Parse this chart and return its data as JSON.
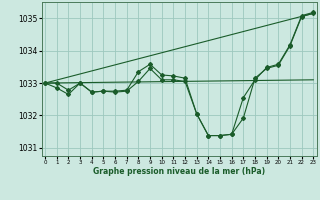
{
  "xlabel": "Graphe pression niveau de la mer (hPa)",
  "background_color": "#cce8e0",
  "grid_color": "#9dc8be",
  "line_color": "#1a5c2a",
  "hours": [
    0,
    1,
    2,
    3,
    4,
    5,
    6,
    7,
    8,
    9,
    10,
    11,
    12,
    13,
    14,
    15,
    16,
    17,
    18,
    19,
    20,
    21,
    22,
    23
  ],
  "series1": [
    1033.0,
    1032.85,
    1032.65,
    1033.0,
    1032.72,
    1032.75,
    1032.75,
    1032.78,
    1033.35,
    1033.58,
    1033.25,
    1033.22,
    1033.15,
    1032.05,
    1031.38,
    1031.38,
    1031.42,
    1031.92,
    1033.15,
    1033.45,
    1033.55,
    1034.15,
    1035.05,
    1035.15
  ],
  "series2": [
    1033.0,
    1033.0,
    1032.78,
    1033.0,
    1032.72,
    1032.75,
    1032.72,
    1032.75,
    1033.05,
    1033.45,
    1033.1,
    1033.1,
    1033.05,
    1032.05,
    1031.38,
    1031.38,
    1031.42,
    1032.55,
    1033.1,
    1033.48,
    1033.58,
    1034.18,
    1035.08,
    1035.18
  ],
  "trend1_y": [
    1033.0,
    1035.15
  ],
  "trend2_y": [
    1033.0,
    1033.1
  ],
  "ylim": [
    1030.75,
    1035.5
  ],
  "yticks": [
    1031,
    1032,
    1033,
    1034,
    1035
  ],
  "xlim": [
    -0.3,
    23.3
  ]
}
